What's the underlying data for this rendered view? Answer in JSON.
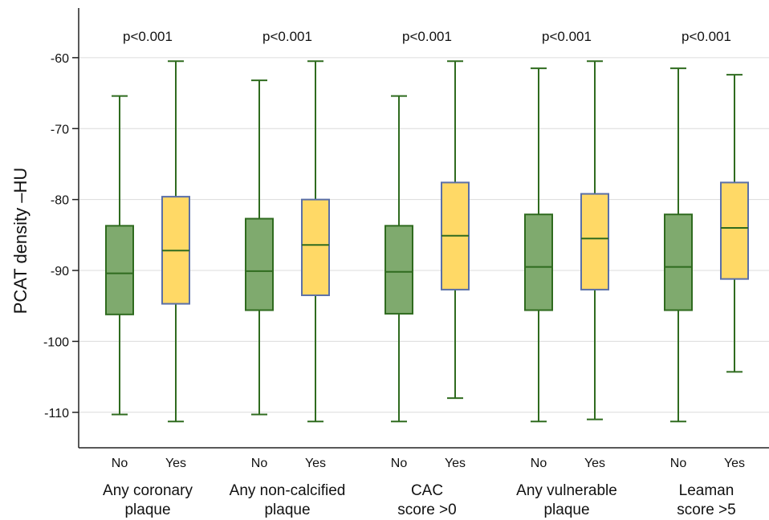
{
  "chart_data": {
    "type": "box",
    "ylabel": "PCAT density –HU",
    "ylim": [
      -115,
      -53
    ],
    "y_ticks": [
      -60,
      -70,
      -80,
      -90,
      -100,
      -110
    ],
    "grid": true,
    "categories": [
      "No",
      "Yes"
    ],
    "colors": {
      "No": "#7faa6e",
      "Yes": "#ffd966",
      "whisker": "#2f6b1f",
      "yes_box_border": "#5a6fa8",
      "yes_median": "#2f6b1f"
    },
    "groups": [
      {
        "label_lines": [
          "Any coronary",
          "plaque"
        ],
        "p_value": "p<0.001",
        "boxes": [
          {
            "category": "No",
            "min": -110.3,
            "q1": -96.2,
            "median": -90.4,
            "q3": -83.7,
            "max": -65.4
          },
          {
            "category": "Yes",
            "min": -111.3,
            "q1": -94.7,
            "median": -87.2,
            "q3": -79.6,
            "max": -60.5
          }
        ]
      },
      {
        "label_lines": [
          "Any non-calcified",
          "plaque"
        ],
        "p_value": "p<0.001",
        "boxes": [
          {
            "category": "No",
            "min": -110.3,
            "q1": -95.6,
            "median": -90.1,
            "q3": -82.7,
            "max": -63.2
          },
          {
            "category": "Yes",
            "min": -111.3,
            "q1": -93.5,
            "median": -86.4,
            "q3": -80.0,
            "max": -60.5
          }
        ]
      },
      {
        "label_lines": [
          "CAC",
          "score >0"
        ],
        "p_value": "p<0.001",
        "boxes": [
          {
            "category": "No",
            "min": -111.3,
            "q1": -96.1,
            "median": -90.2,
            "q3": -83.7,
            "max": -65.4
          },
          {
            "category": "Yes",
            "min": -108.0,
            "q1": -92.7,
            "median": -85.1,
            "q3": -77.6,
            "max": -60.5
          }
        ]
      },
      {
        "label_lines": [
          "Any vulnerable",
          "plaque"
        ],
        "p_value": "p<0.001",
        "boxes": [
          {
            "category": "No",
            "min": -111.3,
            "q1": -95.6,
            "median": -89.5,
            "q3": -82.1,
            "max": -61.5
          },
          {
            "category": "Yes",
            "min": -111.0,
            "q1": -92.7,
            "median": -85.5,
            "q3": -79.2,
            "max": -60.5
          }
        ]
      },
      {
        "label_lines": [
          "Leaman",
          "score >5"
        ],
        "p_value": "p<0.001",
        "boxes": [
          {
            "category": "No",
            "min": -111.3,
            "q1": -95.6,
            "median": -89.5,
            "q3": -82.1,
            "max": -61.5
          },
          {
            "category": "Yes",
            "min": -104.3,
            "q1": -91.2,
            "median": -84.0,
            "q3": -77.6,
            "max": -62.4
          }
        ]
      }
    ]
  }
}
